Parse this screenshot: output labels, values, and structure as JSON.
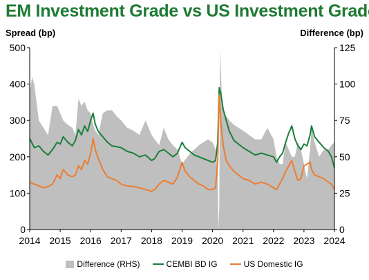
{
  "chart_data": {
    "type": "line",
    "title": "EM Investment Grade vs US Investment Grade",
    "ylabel": "Spread (bp)",
    "y2label": "Difference (bp)",
    "ylim": [
      0,
      500
    ],
    "y2lim": [
      0,
      125
    ],
    "yticks": [
      0,
      100,
      200,
      300,
      400,
      500
    ],
    "y2ticks": [
      0,
      25,
      50,
      75,
      100,
      125
    ],
    "x_ticks": [
      "2014",
      "2015",
      "2016",
      "2017",
      "2018",
      "2019",
      "2020",
      "2021",
      "2022",
      "2023",
      "2024"
    ],
    "xlim": [
      2014.0,
      2024.0
    ],
    "colors": {
      "difference": "#bfbfbf",
      "cembi": "#1a7f3a",
      "us": "#ed7d31"
    },
    "series": [
      {
        "name": "CEMBI BD IG",
        "axis": "left",
        "x": [
          2014.0,
          2014.15,
          2014.3,
          2014.45,
          2014.6,
          2014.75,
          2014.9,
          2015.0,
          2015.1,
          2015.25,
          2015.4,
          2015.5,
          2015.6,
          2015.7,
          2015.8,
          2015.9,
          2016.0,
          2016.08,
          2016.15,
          2016.25,
          2016.4,
          2016.55,
          2016.7,
          2016.85,
          2017.0,
          2017.2,
          2017.4,
          2017.6,
          2017.8,
          2018.0,
          2018.1,
          2018.25,
          2018.4,
          2018.55,
          2018.7,
          2018.85,
          2019.0,
          2019.1,
          2019.25,
          2019.4,
          2019.55,
          2019.7,
          2019.85,
          2020.0,
          2020.1,
          2020.17,
          2020.22,
          2020.27,
          2020.35,
          2020.45,
          2020.55,
          2020.7,
          2020.85,
          2021.0,
          2021.2,
          2021.4,
          2021.6,
          2021.8,
          2022.0,
          2022.1,
          2022.2,
          2022.3,
          2022.4,
          2022.5,
          2022.6,
          2022.7,
          2022.8,
          2022.9,
          2023.0,
          2023.1,
          2023.2,
          2023.25,
          2023.35,
          2023.5,
          2023.65,
          2023.8,
          2023.9,
          2024.0
        ],
        "values": [
          250,
          225,
          230,
          215,
          205,
          220,
          240,
          235,
          255,
          240,
          230,
          245,
          275,
          260,
          285,
          270,
          300,
          320,
          290,
          270,
          255,
          240,
          230,
          228,
          225,
          215,
          210,
          200,
          205,
          190,
          195,
          215,
          220,
          210,
          200,
          210,
          240,
          225,
          215,
          205,
          200,
          195,
          190,
          185,
          190,
          240,
          390,
          375,
          330,
          300,
          270,
          245,
          235,
          225,
          215,
          205,
          210,
          205,
          200,
          185,
          200,
          210,
          240,
          265,
          285,
          250,
          230,
          220,
          235,
          230,
          260,
          285,
          255,
          240,
          225,
          215,
          200,
          170
        ]
      },
      {
        "name": "US Domestic IG",
        "axis": "left",
        "x": [
          2014.0,
          2014.15,
          2014.3,
          2014.45,
          2014.6,
          2014.75,
          2014.9,
          2015.0,
          2015.1,
          2015.25,
          2015.4,
          2015.5,
          2015.6,
          2015.7,
          2015.8,
          2015.9,
          2016.0,
          2016.08,
          2016.15,
          2016.25,
          2016.4,
          2016.55,
          2016.7,
          2016.85,
          2017.0,
          2017.2,
          2017.4,
          2017.6,
          2017.8,
          2018.0,
          2018.1,
          2018.25,
          2018.4,
          2018.55,
          2018.7,
          2018.85,
          2019.0,
          2019.1,
          2019.25,
          2019.4,
          2019.55,
          2019.7,
          2019.85,
          2020.0,
          2020.1,
          2020.17,
          2020.22,
          2020.27,
          2020.35,
          2020.45,
          2020.55,
          2020.7,
          2020.85,
          2021.0,
          2021.2,
          2021.4,
          2021.6,
          2021.8,
          2022.0,
          2022.1,
          2022.2,
          2022.3,
          2022.4,
          2022.5,
          2022.6,
          2022.7,
          2022.8,
          2022.9,
          2023.0,
          2023.1,
          2023.2,
          2023.25,
          2023.35,
          2023.5,
          2023.65,
          2023.8,
          2023.9,
          2024.0
        ],
        "values": [
          130,
          125,
          120,
          115,
          118,
          125,
          150,
          140,
          165,
          150,
          145,
          150,
          175,
          165,
          190,
          180,
          210,
          250,
          220,
          195,
          165,
          145,
          140,
          135,
          125,
          120,
          118,
          115,
          110,
          105,
          110,
          125,
          135,
          130,
          125,
          145,
          185,
          160,
          145,
          135,
          125,
          120,
          110,
          110,
          115,
          190,
          370,
          300,
          230,
          190,
          175,
          160,
          150,
          140,
          135,
          125,
          130,
          125,
          115,
          110,
          125,
          140,
          160,
          175,
          190,
          160,
          135,
          140,
          175,
          180,
          185,
          165,
          150,
          145,
          140,
          130,
          125,
          110
        ]
      },
      {
        "name": "Difference (RHS)",
        "axis": "right",
        "type": "area",
        "x": [
          2014.0,
          2014.08,
          2014.15,
          2014.3,
          2014.45,
          2014.6,
          2014.75,
          2014.9,
          2015.0,
          2015.1,
          2015.25,
          2015.4,
          2015.5,
          2015.6,
          2015.7,
          2015.8,
          2015.9,
          2016.0,
          2016.08,
          2016.15,
          2016.25,
          2016.4,
          2016.55,
          2016.7,
          2016.85,
          2017.0,
          2017.2,
          2017.4,
          2017.6,
          2017.8,
          2018.0,
          2018.1,
          2018.25,
          2018.4,
          2018.55,
          2018.7,
          2018.85,
          2019.0,
          2019.1,
          2019.25,
          2019.4,
          2019.55,
          2019.7,
          2019.85,
          2020.0,
          2020.1,
          2020.17,
          2020.19,
          2020.22,
          2020.25,
          2020.3,
          2020.35,
          2020.45,
          2020.55,
          2020.7,
          2020.85,
          2021.0,
          2021.2,
          2021.4,
          2021.6,
          2021.8,
          2022.0,
          2022.1,
          2022.2,
          2022.3,
          2022.4,
          2022.5,
          2022.6,
          2022.7,
          2022.8,
          2022.9,
          2023.0,
          2023.1,
          2023.2,
          2023.25,
          2023.35,
          2023.5,
          2023.65,
          2023.8,
          2023.9,
          2024.0
        ],
        "values": [
          95,
          105,
          100,
          75,
          70,
          65,
          85,
          85,
          80,
          75,
          72,
          70,
          65,
          90,
          85,
          88,
          82,
          80,
          72,
          68,
          65,
          80,
          82,
          82,
          78,
          75,
          70,
          68,
          65,
          75,
          65,
          62,
          58,
          70,
          62,
          58,
          55,
          45,
          48,
          52,
          55,
          58,
          60,
          62,
          60,
          55,
          40,
          0,
          15,
          125,
          95,
          80,
          78,
          75,
          72,
          70,
          68,
          65,
          62,
          62,
          70,
          62,
          50,
          45,
          45,
          60,
          55,
          50,
          50,
          60,
          55,
          45,
          35,
          55,
          70,
          60,
          50,
          55,
          55,
          58,
          60
        ]
      }
    ]
  },
  "legend": {
    "difference": "Difference (RHS)",
    "cembi": "CEMBI BD IG",
    "us": "US Domestic IG"
  }
}
